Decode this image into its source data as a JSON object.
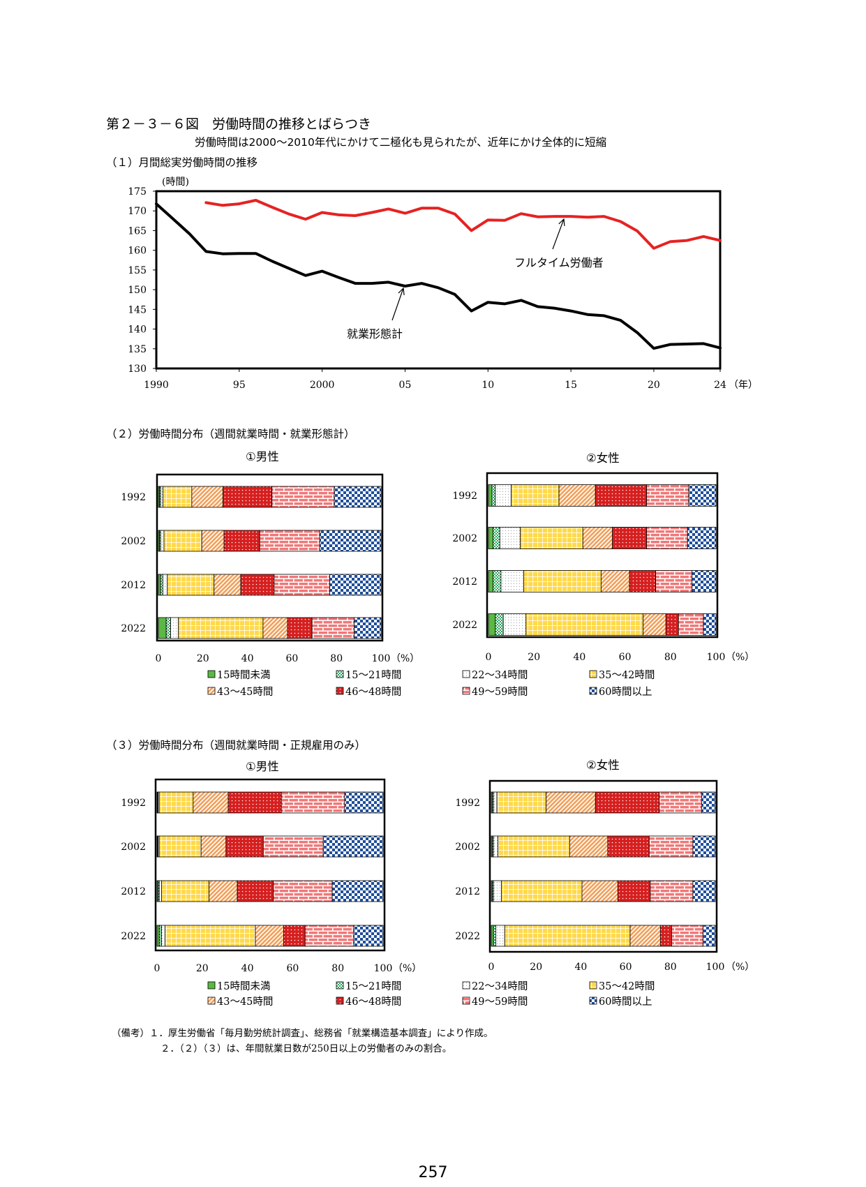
{
  "title": "第２－３－６図　労働時間の推移とばらつき",
  "subtitle": "労働時間は2000～2010年代にかけて二極化も見られたが、近年にかけ全体的に短縮",
  "page_number": "257",
  "colors": {
    "line_red": "#e62222",
    "line_black": "#000000",
    "cat_lt15": "#5cb845",
    "cat_15_21": "#27a35a",
    "cat_22_34": "#ffffff",
    "cat_35_42": "#ffd94a",
    "cat_43_45": "#f2a05a",
    "cat_46_48": "#d61f1f",
    "cat_49_59": "#f07878",
    "cat_60plus": "#1f4e9a"
  },
  "section1": {
    "title": "（１）月間総実労働時間の推移",
    "unit_label": "(時間)",
    "x_unit_label": "（年）",
    "yticks": [
      "175",
      "170",
      "165",
      "160",
      "155",
      "150",
      "145",
      "140",
      "135",
      "130"
    ],
    "xticks": [
      "1990",
      "95",
      "2000",
      "05",
      "10",
      "15",
      "20",
      "24"
    ],
    "annotation_fulltime": "フルタイム労働者",
    "annotation_all": "就業形態計"
  },
  "section2": {
    "title": "（２）労働時間分布（週間就業時間・就業形態計）",
    "male_title": "①男性",
    "female_title": "②女性"
  },
  "section3": {
    "title": "（３）労働時間分布（週間就業時間・正規雇用のみ）",
    "male_title": "①男性",
    "female_title": "②女性"
  },
  "bar_axis": {
    "xticks": [
      "0",
      "20",
      "40",
      "60",
      "80",
      "100"
    ],
    "unit": "（%）",
    "years": [
      "1992",
      "2002",
      "2012",
      "2022"
    ]
  },
  "legend": [
    "15時間未満",
    "15～21時間",
    "22～34時間",
    "35～42時間",
    "43～45時間",
    "46～48時間",
    "49～59時間",
    "60時間以上"
  ],
  "notes": {
    "note1": "（備考）１．厚生労働省「毎月勤労統計調査」、総務省「就業構造基本調査」により作成。",
    "note2": "２．（２）（３）は、年間就業日数が250日以上の労働者のみの割合。"
  },
  "chart_data": [
    {
      "id": "monthly_hours",
      "type": "line",
      "title": "（１）月間総実労働時間の推移",
      "ylabel": "(時間)",
      "xlabel": "（年）",
      "xlim": [
        1990,
        2024
      ],
      "ylim": [
        130,
        175
      ],
      "series": [
        {
          "name": "就業形態計",
          "x": [
            1990,
            1991,
            1992,
            1993,
            1994,
            1995,
            1996,
            1997,
            1998,
            1999,
            2000,
            2001,
            2002,
            2003,
            2004,
            2005,
            2006,
            2007,
            2008,
            2009,
            2010,
            2011,
            2012,
            2013,
            2014,
            2015,
            2016,
            2017,
            2018,
            2019,
            2020,
            2021,
            2022,
            2023,
            2024
          ],
          "values": [
            171.8,
            168.0,
            164.2,
            159.7,
            159.1,
            159.2,
            159.2,
            157.2,
            155.4,
            153.6,
            154.7,
            153.1,
            151.6,
            151.6,
            151.9,
            150.9,
            151.6,
            150.5,
            148.8,
            144.6,
            146.8,
            146.4,
            147.3,
            145.7,
            145.3,
            144.6,
            143.7,
            143.4,
            142.2,
            139.1,
            135.1,
            136.1,
            136.2,
            136.3,
            135.2
          ]
        },
        {
          "name": "フルタイム労働者",
          "x": [
            1993,
            1994,
            1995,
            1996,
            1997,
            1998,
            1999,
            2000,
            2001,
            2002,
            2003,
            2004,
            2005,
            2006,
            2007,
            2008,
            2009,
            2010,
            2011,
            2012,
            2013,
            2014,
            2015,
            2016,
            2017,
            2018,
            2019,
            2020,
            2021,
            2022,
            2023,
            2024
          ],
          "values": [
            172.1,
            171.4,
            171.8,
            172.7,
            170.9,
            169.2,
            167.9,
            169.6,
            169.0,
            168.8,
            169.6,
            170.5,
            169.4,
            170.7,
            170.7,
            169.2,
            165.0,
            167.7,
            167.6,
            169.3,
            168.5,
            168.6,
            168.6,
            168.4,
            168.6,
            167.3,
            164.9,
            160.5,
            162.2,
            162.5,
            163.5,
            162.5
          ]
        }
      ]
    },
    {
      "id": "dist_all_male",
      "type": "bar",
      "stacked": true,
      "orientation": "horizontal",
      "title": "①男性",
      "categories": [
        "1992",
        "2002",
        "2012",
        "2022"
      ],
      "series": [
        {
          "name": "15時間未満",
          "values": [
            0.5,
            0.5,
            1.0,
            3.5
          ]
        },
        {
          "name": "15～21時間",
          "values": [
            0.5,
            0.5,
            1.0,
            2.0
          ]
        },
        {
          "name": "22～34時間",
          "values": [
            1.0,
            1.5,
            2.0,
            3.5
          ]
        },
        {
          "name": "35～42時間",
          "values": [
            13.0,
            17.0,
            21.0,
            38.0
          ]
        },
        {
          "name": "43～45時間",
          "values": [
            14.0,
            10.0,
            12.0,
            11.0
          ]
        },
        {
          "name": "46～48時間",
          "values": [
            22.0,
            16.0,
            15.0,
            11.0
          ]
        },
        {
          "name": "49～59時間",
          "values": [
            28.0,
            27.0,
            25.0,
            19.0
          ]
        },
        {
          "name": "60時間以上",
          "values": [
            21.0,
            27.5,
            23.0,
            12.0
          ]
        }
      ],
      "xlim": [
        0,
        100
      ],
      "xlabel": "（%）"
    },
    {
      "id": "dist_all_female",
      "type": "bar",
      "stacked": true,
      "orientation": "horizontal",
      "title": "②女性",
      "categories": [
        "1992",
        "2002",
        "2012",
        "2022"
      ],
      "series": [
        {
          "name": "15時間未満",
          "values": [
            1.5,
            2.0,
            2.0,
            3.0
          ]
        },
        {
          "name": "15～21時間",
          "values": [
            1.5,
            3.0,
            3.5,
            3.5
          ]
        },
        {
          "name": "22～34時間",
          "values": [
            7.0,
            9.0,
            10.0,
            10.0
          ]
        },
        {
          "name": "35～42時間",
          "values": [
            21.0,
            27.5,
            34.0,
            51.5
          ]
        },
        {
          "name": "43～45時間",
          "values": [
            16.0,
            13.0,
            12.5,
            10.0
          ]
        },
        {
          "name": "46～48時間",
          "values": [
            22.5,
            15.0,
            11.5,
            5.5
          ]
        },
        {
          "name": "49～59時間",
          "values": [
            18.5,
            18.0,
            16.0,
            11.0
          ]
        },
        {
          "name": "60時間以上",
          "values": [
            12.0,
            12.5,
            10.5,
            5.5
          ]
        }
      ],
      "xlim": [
        0,
        100
      ],
      "xlabel": "（%）"
    },
    {
      "id": "dist_regular_male",
      "type": "bar",
      "stacked": true,
      "orientation": "horizontal",
      "title": "①男性",
      "categories": [
        "1992",
        "2002",
        "2012",
        "2022"
      ],
      "series": [
        {
          "name": "15時間未満",
          "values": [
            0.3,
            0.3,
            0.5,
            1.0
          ]
        },
        {
          "name": "15～21時間",
          "values": [
            0.2,
            0.2,
            0.5,
            1.0
          ]
        },
        {
          "name": "22～34時間",
          "values": [
            0.5,
            0.5,
            1.0,
            1.5
          ]
        },
        {
          "name": "35～42時間",
          "values": [
            15.0,
            18.5,
            21.0,
            40.0
          ]
        },
        {
          "name": "43～45時間",
          "values": [
            15.5,
            11.0,
            12.5,
            12.5
          ]
        },
        {
          "name": "46～48時間",
          "values": [
            23.5,
            16.5,
            16.0,
            9.5
          ]
        },
        {
          "name": "49～59時間",
          "values": [
            28.0,
            26.5,
            26.0,
            21.5
          ]
        },
        {
          "name": "60時間以上",
          "values": [
            17.0,
            26.5,
            22.5,
            13.0
          ]
        }
      ],
      "xlim": [
        0,
        100
      ],
      "xlabel": "（%）"
    },
    {
      "id": "dist_regular_female",
      "type": "bar",
      "stacked": true,
      "orientation": "horizontal",
      "title": "②女性",
      "categories": [
        "1992",
        "2002",
        "2012",
        "2022"
      ],
      "series": [
        {
          "name": "15時間未満",
          "values": [
            0.5,
            0.5,
            0.5,
            1.0
          ]
        },
        {
          "name": "15～21時間",
          "values": [
            0.5,
            0.5,
            0.5,
            1.0
          ]
        },
        {
          "name": "22～34時間",
          "values": [
            1.5,
            2.0,
            3.5,
            4.0
          ]
        },
        {
          "name": "35～42時間",
          "values": [
            22.0,
            32.0,
            36.0,
            56.0
          ]
        },
        {
          "name": "43～45時間",
          "values": [
            22.0,
            17.0,
            16.0,
            13.5
          ]
        },
        {
          "name": "46～48時間",
          "values": [
            28.5,
            18.5,
            14.5,
            5.0
          ]
        },
        {
          "name": "49～59時間",
          "values": [
            19.0,
            19.5,
            19.0,
            14.0
          ]
        },
        {
          "name": "60時間以上",
          "values": [
            6.0,
            10.0,
            10.0,
            5.5
          ]
        }
      ],
      "xlim": [
        0,
        100
      ],
      "xlabel": "（%）"
    }
  ]
}
